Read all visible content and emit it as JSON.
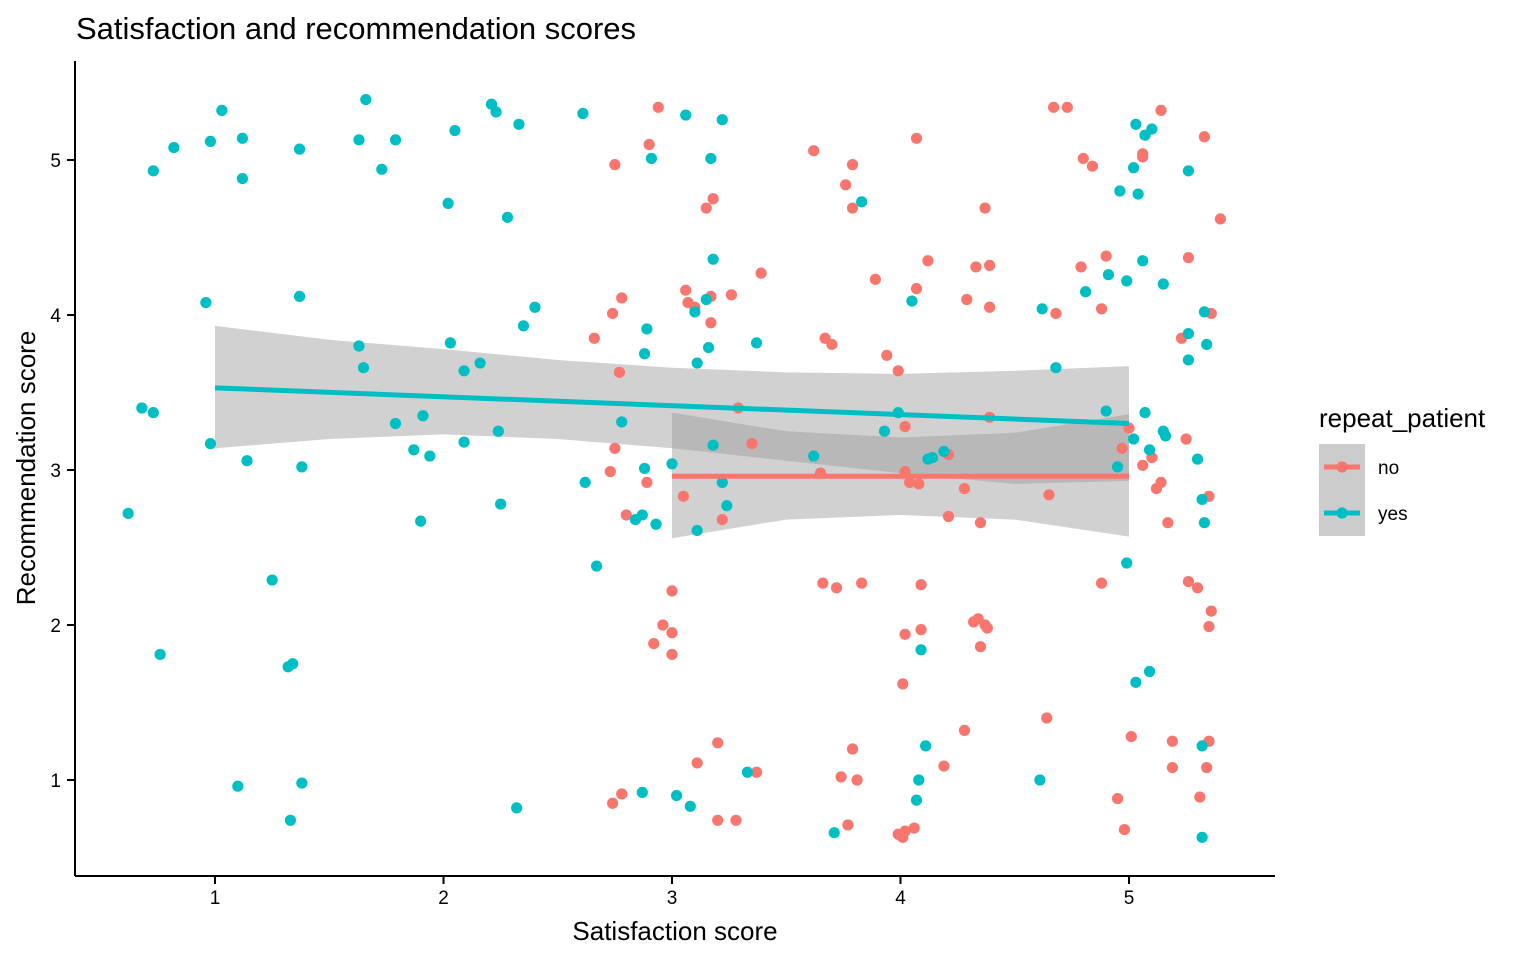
{
  "chart_data": {
    "type": "scatter",
    "title": "Satisfaction and recommendation scores",
    "xlabel": "Satisfaction score",
    "ylabel": "Recommendation score",
    "xlim": [
      0.6,
      5.65
    ],
    "ylim": [
      0.55,
      5.6
    ],
    "xticks": [
      1,
      2,
      3,
      4,
      5
    ],
    "yticks": [
      1,
      2,
      3,
      4,
      5
    ],
    "grid": false,
    "legend": {
      "title": "repeat_patient",
      "position": "right",
      "entries": [
        {
          "label": "no",
          "color": "#F8766D"
        },
        {
          "label": "yes",
          "color": "#00BFC4"
        }
      ]
    },
    "series": [
      {
        "name": "no",
        "color": "#F8766D",
        "points": [
          [
            2.75,
            4.97
          ],
          [
            2.9,
            5.1
          ],
          [
            2.94,
            5.34
          ],
          [
            3.15,
            4.69
          ],
          [
            3.18,
            4.75
          ],
          [
            3.62,
            5.06
          ],
          [
            3.76,
            4.84
          ],
          [
            3.79,
            4.97
          ],
          [
            3.79,
            4.69
          ],
          [
            4.07,
            5.14
          ],
          [
            4.37,
            4.69
          ],
          [
            4.67,
            5.34
          ],
          [
            4.73,
            5.34
          ],
          [
            4.8,
            5.01
          ],
          [
            4.84,
            4.96
          ],
          [
            5.06,
            5.04
          ],
          [
            5.06,
            5.02
          ],
          [
            5.14,
            5.32
          ],
          [
            5.33,
            5.15
          ],
          [
            5.4,
            4.62
          ],
          [
            2.74,
            4.01
          ],
          [
            2.78,
            4.11
          ],
          [
            2.66,
            3.85
          ],
          [
            2.77,
            3.63
          ],
          [
            3.06,
            4.16
          ],
          [
            3.07,
            4.08
          ],
          [
            3.1,
            4.05
          ],
          [
            3.17,
            4.12
          ],
          [
            3.17,
            3.95
          ],
          [
            3.26,
            4.13
          ],
          [
            3.39,
            4.27
          ],
          [
            3.67,
            3.85
          ],
          [
            3.7,
            3.81
          ],
          [
            3.89,
            4.23
          ],
          [
            3.94,
            3.74
          ],
          [
            4.07,
            4.17
          ],
          [
            4.12,
            4.35
          ],
          [
            4.29,
            4.1
          ],
          [
            4.33,
            4.31
          ],
          [
            4.39,
            4.32
          ],
          [
            4.39,
            4.05
          ],
          [
            4.68,
            4.01
          ],
          [
            4.79,
            4.31
          ],
          [
            4.88,
            4.04
          ],
          [
            4.9,
            4.38
          ],
          [
            5.23,
            3.85
          ],
          [
            5.26,
            4.37
          ],
          [
            5.36,
            4.01
          ],
          [
            2.73,
            2.99
          ],
          [
            2.75,
            3.14
          ],
          [
            2.8,
            2.71
          ],
          [
            2.89,
            2.92
          ],
          [
            3.05,
            2.83
          ],
          [
            3.22,
            2.68
          ],
          [
            3.29,
            3.4
          ],
          [
            3.35,
            3.17
          ],
          [
            3.65,
            2.98
          ],
          [
            3.99,
            3.64
          ],
          [
            4.02,
            3.28
          ],
          [
            4.02,
            2.99
          ],
          [
            4.04,
            2.92
          ],
          [
            4.08,
            2.91
          ],
          [
            4.21,
            3.1
          ],
          [
            4.21,
            2.7
          ],
          [
            4.28,
            2.88
          ],
          [
            4.35,
            2.66
          ],
          [
            4.39,
            3.34
          ],
          [
            4.65,
            2.84
          ],
          [
            4.97,
            3.14
          ],
          [
            5.0,
            3.27
          ],
          [
            5.06,
            3.03
          ],
          [
            5.1,
            3.08
          ],
          [
            5.12,
            2.88
          ],
          [
            5.14,
            2.92
          ],
          [
            5.17,
            2.66
          ],
          [
            5.25,
            3.2
          ],
          [
            5.35,
            2.83
          ],
          [
            2.96,
            2.0
          ],
          [
            3.0,
            2.22
          ],
          [
            3.0,
            1.95
          ],
          [
            2.92,
            1.88
          ],
          [
            3.0,
            1.81
          ],
          [
            3.66,
            2.27
          ],
          [
            3.72,
            2.24
          ],
          [
            3.83,
            2.27
          ],
          [
            4.02,
            1.94
          ],
          [
            4.09,
            2.26
          ],
          [
            4.09,
            1.97
          ],
          [
            4.01,
            1.62
          ],
          [
            4.32,
            2.02
          ],
          [
            4.34,
            2.04
          ],
          [
            4.37,
            2.0
          ],
          [
            4.38,
            1.98
          ],
          [
            4.35,
            1.86
          ],
          [
            4.88,
            2.27
          ],
          [
            5.26,
            2.28
          ],
          [
            5.3,
            2.24
          ],
          [
            5.36,
            2.09
          ],
          [
            5.35,
            1.99
          ],
          [
            2.74,
            0.85
          ],
          [
            2.78,
            0.91
          ],
          [
            3.11,
            1.11
          ],
          [
            3.2,
            1.24
          ],
          [
            3.2,
            0.74
          ],
          [
            3.28,
            0.74
          ],
          [
            3.37,
            1.05
          ],
          [
            3.74,
            1.02
          ],
          [
            3.77,
            0.71
          ],
          [
            3.79,
            1.2
          ],
          [
            3.81,
            1.0
          ],
          [
            3.99,
            0.65
          ],
          [
            4.01,
            0.63
          ],
          [
            4.02,
            0.67
          ],
          [
            4.06,
            0.69
          ],
          [
            4.19,
            1.09
          ],
          [
            4.28,
            1.32
          ],
          [
            4.64,
            1.4
          ],
          [
            4.95,
            0.88
          ],
          [
            4.98,
            0.68
          ],
          [
            5.01,
            1.28
          ],
          [
            5.19,
            1.25
          ],
          [
            5.19,
            1.08
          ],
          [
            5.31,
            0.89
          ],
          [
            5.34,
            1.08
          ],
          [
            5.35,
            1.25
          ]
        ],
        "trend": {
          "x0": 3.0,
          "x1": 5.0,
          "y0": 2.96,
          "y1": 2.96,
          "ci_low": [
            [
              3.0,
              2.56
            ],
            [
              3.5,
              2.68
            ],
            [
              4.0,
              2.71
            ],
            [
              4.5,
              2.68
            ],
            [
              5.0,
              2.57
            ]
          ],
          "ci_high": [
            [
              3.0,
              3.37
            ],
            [
              3.5,
              3.25
            ],
            [
              4.0,
              3.21
            ],
            [
              4.5,
              3.24
            ],
            [
              5.0,
              3.36
            ]
          ]
        }
      },
      {
        "name": "yes",
        "color": "#00BFC4",
        "points": [
          [
            0.73,
            4.93
          ],
          [
            0.82,
            5.08
          ],
          [
            0.98,
            5.12
          ],
          [
            1.03,
            5.32
          ],
          [
            1.12,
            5.14
          ],
          [
            1.12,
            4.88
          ],
          [
            1.37,
            5.07
          ],
          [
            1.63,
            5.13
          ],
          [
            1.66,
            5.39
          ],
          [
            1.73,
            4.94
          ],
          [
            1.79,
            5.13
          ],
          [
            2.02,
            4.72
          ],
          [
            2.05,
            5.19
          ],
          [
            2.21,
            5.36
          ],
          [
            2.23,
            5.31
          ],
          [
            2.28,
            4.63
          ],
          [
            2.33,
            5.23
          ],
          [
            2.61,
            5.3
          ],
          [
            2.91,
            5.01
          ],
          [
            3.06,
            5.29
          ],
          [
            3.17,
            5.01
          ],
          [
            3.22,
            5.26
          ],
          [
            3.83,
            4.73
          ],
          [
            4.96,
            4.8
          ],
          [
            5.02,
            4.95
          ],
          [
            5.04,
            4.78
          ],
          [
            5.03,
            5.23
          ],
          [
            5.07,
            5.16
          ],
          [
            5.1,
            5.2
          ],
          [
            5.26,
            4.93
          ],
          [
            0.96,
            4.08
          ],
          [
            1.37,
            4.12
          ],
          [
            1.63,
            3.8
          ],
          [
            1.65,
            3.66
          ],
          [
            2.03,
            3.82
          ],
          [
            2.09,
            3.64
          ],
          [
            2.16,
            3.69
          ],
          [
            2.35,
            3.93
          ],
          [
            2.4,
            4.05
          ],
          [
            2.88,
            3.75
          ],
          [
            2.89,
            3.91
          ],
          [
            3.1,
            4.02
          ],
          [
            3.11,
            3.69
          ],
          [
            3.15,
            4.1
          ],
          [
            3.16,
            3.79
          ],
          [
            3.18,
            4.36
          ],
          [
            3.37,
            3.82
          ],
          [
            4.05,
            4.09
          ],
          [
            4.62,
            4.04
          ],
          [
            4.68,
            3.66
          ],
          [
            4.81,
            4.15
          ],
          [
            4.91,
            4.26
          ],
          [
            4.99,
            4.22
          ],
          [
            5.06,
            4.35
          ],
          [
            5.15,
            4.2
          ],
          [
            5.26,
            3.88
          ],
          [
            5.26,
            3.71
          ],
          [
            5.33,
            4.02
          ],
          [
            5.34,
            3.81
          ],
          [
            0.68,
            3.4
          ],
          [
            0.73,
            3.37
          ],
          [
            0.98,
            3.17
          ],
          [
            1.14,
            3.06
          ],
          [
            1.38,
            3.02
          ],
          [
            1.79,
            3.3
          ],
          [
            1.87,
            3.13
          ],
          [
            1.91,
            3.35
          ],
          [
            1.94,
            3.09
          ],
          [
            2.09,
            3.18
          ],
          [
            2.24,
            3.25
          ],
          [
            2.78,
            3.31
          ],
          [
            2.88,
            3.01
          ],
          [
            3.0,
            3.04
          ],
          [
            3.18,
            3.16
          ],
          [
            3.22,
            2.92
          ],
          [
            3.62,
            3.09
          ],
          [
            3.93,
            3.25
          ],
          [
            3.99,
            3.37
          ],
          [
            4.12,
            3.07
          ],
          [
            4.14,
            3.08
          ],
          [
            4.19,
            3.12
          ],
          [
            4.9,
            3.38
          ],
          [
            4.95,
            3.02
          ],
          [
            5.02,
            3.2
          ],
          [
            5.07,
            3.37
          ],
          [
            5.09,
            3.13
          ],
          [
            5.15,
            3.25
          ],
          [
            5.16,
            3.22
          ],
          [
            5.3,
            3.07
          ],
          [
            0.62,
            2.72
          ],
          [
            1.9,
            2.67
          ],
          [
            2.25,
            2.78
          ],
          [
            2.62,
            2.92
          ],
          [
            2.84,
            2.68
          ],
          [
            2.87,
            2.71
          ],
          [
            2.93,
            2.65
          ],
          [
            3.11,
            2.61
          ],
          [
            3.24,
            2.77
          ],
          [
            5.32,
            2.81
          ],
          [
            5.33,
            2.66
          ],
          [
            1.25,
            2.29
          ],
          [
            2.67,
            2.38
          ],
          [
            1.32,
            1.73
          ],
          [
            1.34,
            1.75
          ],
          [
            0.76,
            1.81
          ],
          [
            4.09,
            1.84
          ],
          [
            4.99,
            2.4
          ],
          [
            5.03,
            1.63
          ],
          [
            5.09,
            1.7
          ],
          [
            1.1,
            0.96
          ],
          [
            1.33,
            0.74
          ],
          [
            1.38,
            0.98
          ],
          [
            2.32,
            0.82
          ],
          [
            2.87,
            0.92
          ],
          [
            3.02,
            0.9
          ],
          [
            3.08,
            0.83
          ],
          [
            3.33,
            1.05
          ],
          [
            3.71,
            0.66
          ],
          [
            4.07,
            0.87
          ],
          [
            4.08,
            1.0
          ],
          [
            4.11,
            1.22
          ],
          [
            4.61,
            1.0
          ],
          [
            5.32,
            1.22
          ],
          [
            5.32,
            0.63
          ]
        ],
        "trend": {
          "x0": 1.0,
          "x1": 5.0,
          "y0": 3.53,
          "y1": 3.3,
          "ci_low": [
            [
              1.0,
              3.14
            ],
            [
              1.5,
              3.2
            ],
            [
              2.0,
              3.23
            ],
            [
              2.5,
              3.2
            ],
            [
              3.0,
              3.14
            ],
            [
              3.5,
              3.06
            ],
            [
              4.0,
              2.98
            ],
            [
              4.5,
              2.91
            ],
            [
              5.0,
              2.93
            ]
          ],
          "ci_high": [
            [
              1.0,
              3.93
            ],
            [
              1.5,
              3.84
            ],
            [
              2.0,
              3.78
            ],
            [
              2.5,
              3.71
            ],
            [
              3.0,
              3.66
            ],
            [
              3.5,
              3.63
            ],
            [
              4.0,
              3.62
            ],
            [
              4.5,
              3.64
            ],
            [
              5.0,
              3.67
            ]
          ]
        }
      }
    ]
  }
}
